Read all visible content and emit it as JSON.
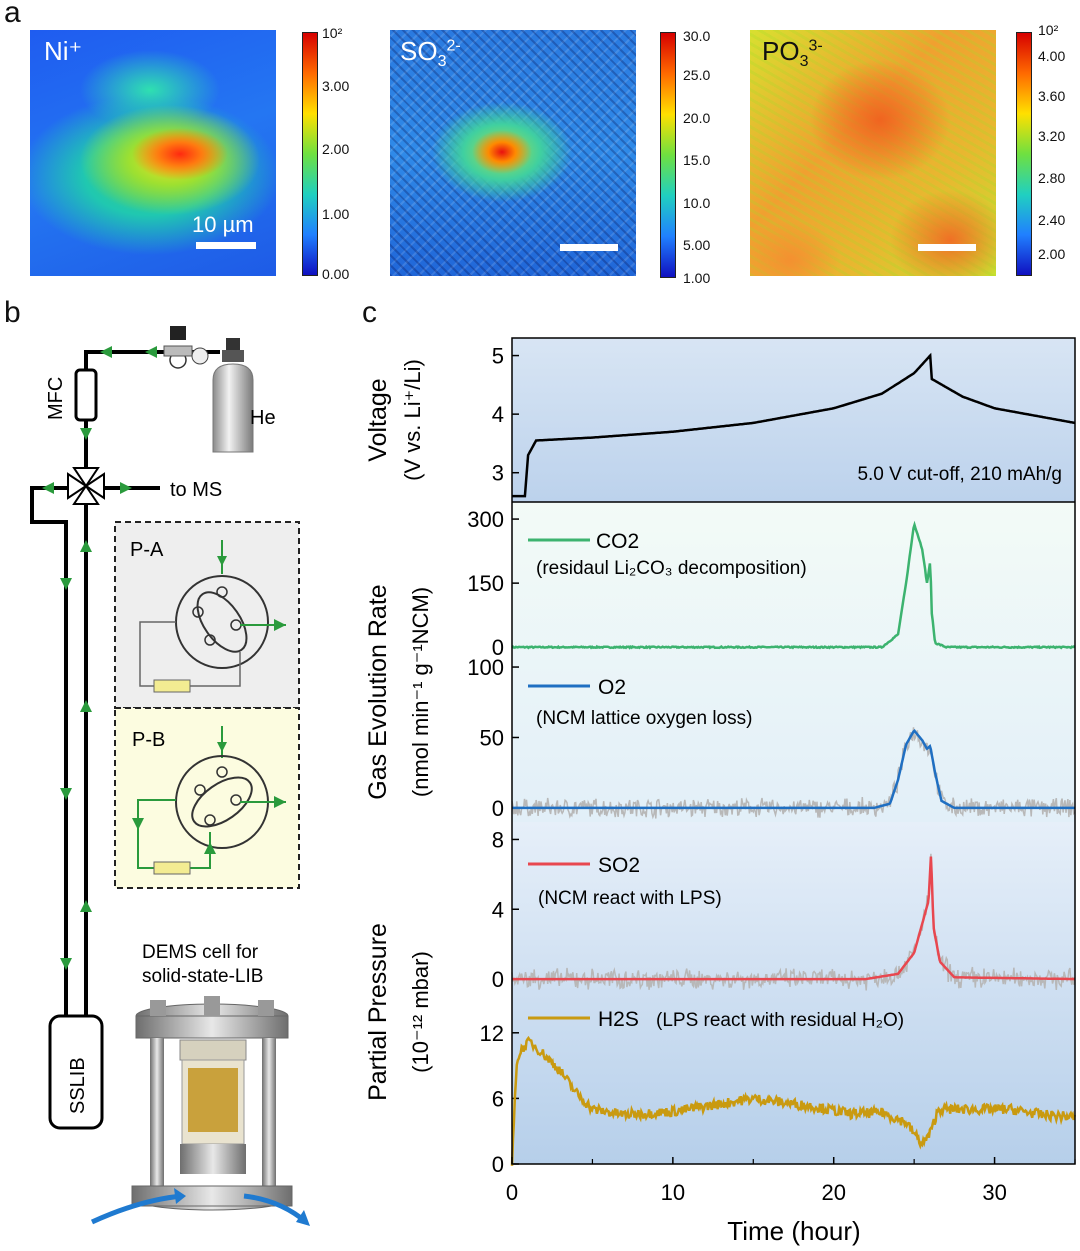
{
  "panel_a": {
    "letter": "a",
    "maps": [
      {
        "label": "Ni⁺",
        "scale_label": "10 µm",
        "cbar_ticks": [
          "10²",
          "3.00",
          "2.00",
          "1.00",
          "0.00"
        ]
      },
      {
        "label_main": "SO",
        "label_sub": "3",
        "label_sup": "2-",
        "cbar_ticks": [
          "30.0",
          "25.0",
          "20.0",
          "15.0",
          "10.0",
          "5.00",
          "1.00"
        ]
      },
      {
        "label_main": "PO",
        "label_sub": "3",
        "label_sup": "3-",
        "cbar_ticks": [
          "10²",
          "4.00",
          "3.60",
          "3.20",
          "2.80",
          "2.40",
          "2.00"
        ]
      }
    ]
  },
  "panel_b": {
    "letter": "b",
    "labels": {
      "mfc": "MFC",
      "he": "He",
      "to_ms": "to MS",
      "pa": "P-A",
      "pb": "P-B",
      "cell_line1": "DEMS cell for",
      "cell_line2": "solid-state-LIB",
      "sslib": "SSLIB"
    }
  },
  "panel_c": {
    "letter": "c",
    "ylabel_voltage": "Voltage",
    "ylabel_voltage_units": "(V vs. Li⁺/Li)",
    "voltage_note": "5.0 V cut-off, 210 mAh/g",
    "ylabel_gas": "Gas Evolution Rate",
    "ylabel_gas_units": "(nmol min⁻¹ g⁻¹NCM)",
    "ylabel_pp": "Partial Pressure",
    "ylabel_pp_units": "(10⁻¹² mbar)",
    "xlabel": "Time (hour)",
    "legends": {
      "co2": "CO2",
      "co2_note": "(residaul Li₂CO₃ decomposition)",
      "o2": "O2",
      "o2_note": "(NCM lattice oxygen loss)",
      "so2": "SO2",
      "so2_note": "(NCM react with LPS)",
      "h2s": "H2S",
      "h2s_note": "(LPS react with residual H₂O)"
    }
  },
  "chart_data": [
    {
      "type": "line",
      "title": "Voltage",
      "ylabel": "Voltage (V vs. Li+/Li)",
      "ylim": [
        2.5,
        5.3
      ],
      "yticks": [
        "3",
        "4",
        "5"
      ],
      "color": "#000000",
      "x": [
        0,
        0.8,
        1,
        1.5,
        5,
        10,
        15,
        20,
        23,
        25,
        26,
        26.1,
        28,
        30,
        32,
        35
      ],
      "values": [
        2.6,
        2.6,
        3.3,
        3.55,
        3.6,
        3.7,
        3.85,
        4.1,
        4.35,
        4.7,
        5.0,
        4.6,
        4.3,
        4.1,
        4.0,
        3.85
      ]
    },
    {
      "type": "line",
      "title": "CO2",
      "ylim": [
        -30,
        340
      ],
      "yticks": [
        "0",
        "150",
        "300"
      ],
      "color": "#3cb36f",
      "x": [
        0,
        23,
        24,
        24.5,
        25,
        25.5,
        25.8,
        26,
        26.1,
        26.3,
        27,
        35
      ],
      "values": [
        0,
        0,
        30,
        150,
        290,
        230,
        150,
        200,
        80,
        10,
        0,
        0
      ]
    },
    {
      "type": "line",
      "title": "O2",
      "ylim": [
        -10,
        105
      ],
      "yticks": [
        "0",
        "50",
        "100"
      ],
      "color": "#1f6fc2",
      "x": [
        0,
        22.5,
        23.5,
        24,
        24.5,
        25,
        25.5,
        25.8,
        26,
        26.3,
        26.7,
        27.5,
        35
      ],
      "values": [
        0,
        0,
        3,
        20,
        45,
        55,
        48,
        42,
        44,
        25,
        5,
        0,
        0
      ]
    },
    {
      "type": "line",
      "title": "SO2",
      "ylim": [
        -1.2,
        9
      ],
      "yticks": [
        "0",
        "4",
        "8"
      ],
      "color": "#e8474f",
      "x": [
        0,
        22,
        24,
        25,
        25.6,
        25.9,
        26.05,
        26.2,
        26.6,
        27.5,
        35
      ],
      "values": [
        0,
        0,
        0.3,
        1.5,
        3.5,
        4.5,
        7.2,
        3.0,
        1.0,
        0.1,
        0
      ]
    },
    {
      "type": "line",
      "title": "H2S",
      "ylim": [
        0,
        15
      ],
      "yticks": [
        "0",
        "6",
        "12"
      ],
      "color": "#c99a10",
      "x": [
        0,
        0.3,
        0.6,
        1.1,
        2,
        3,
        4,
        5,
        7,
        10,
        13,
        15,
        17,
        19,
        21,
        23,
        24.5,
        25.5,
        26,
        26.5,
        28,
        31,
        33,
        35
      ],
      "values": [
        0,
        9.5,
        10.5,
        11.2,
        10,
        8.5,
        6.5,
        5,
        4.5,
        4.8,
        5.5,
        6,
        5.6,
        5.2,
        4.6,
        4.7,
        3.8,
        1.8,
        2.8,
        5,
        5,
        5,
        4.5,
        4.3
      ]
    },
    {
      "type": "axis",
      "xlabel": "Time (hour)",
      "xlim": [
        0,
        35
      ],
      "xticks": [
        "0",
        "10",
        "20",
        "30"
      ]
    }
  ]
}
